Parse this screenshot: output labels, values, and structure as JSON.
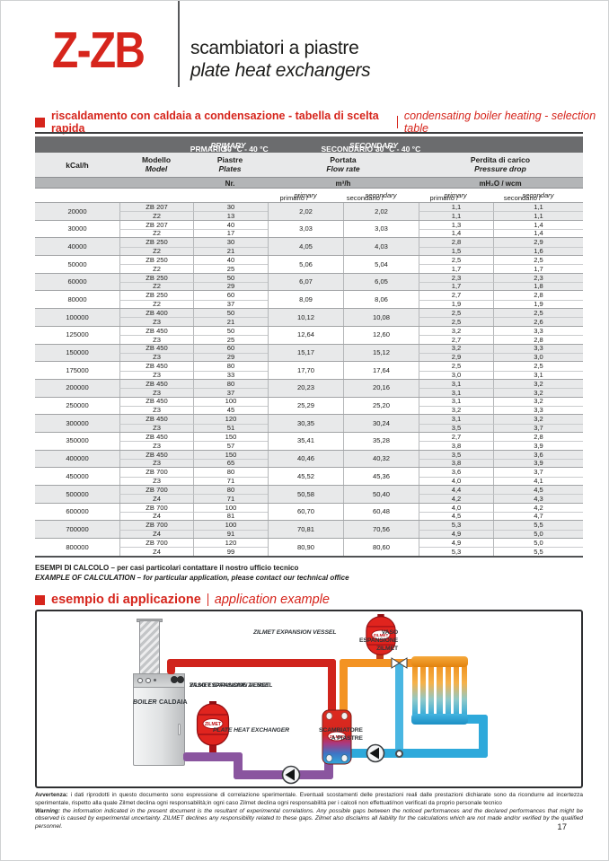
{
  "header": {
    "product_code": "Z-ZB",
    "title_it": "scambiatori a piastre",
    "title_en": "plate heat exchangers"
  },
  "section1": {
    "title_it": "riscaldamento con caldaia a condensazione - tabella di scelta rapida",
    "title_en": "condensating boiler heating - selection table"
  },
  "table": {
    "band_primary": {
      "a": "PRMARIO -",
      "b": "PRIMARY",
      "c": "50 °C - 40 °C"
    },
    "band_secondary": {
      "a": "SECONDARIO -",
      "b": "SECONDARY",
      "c": "30 °C - 40 °C"
    },
    "headers": {
      "kcal": "kCal/h",
      "model": {
        "it": "Modello",
        "en": "Model"
      },
      "plates": {
        "it": "Piastre",
        "en": "Plates"
      },
      "flow": {
        "it": "Portata",
        "en": "Flow rate"
      },
      "pressure": {
        "it": "Perdita di carico",
        "en": "Pressure drop"
      }
    },
    "units": {
      "plates": "Nr.",
      "flow": "m³/h",
      "pressure": "mH₂O /  wcm"
    },
    "sublabels": [
      {
        "it": "primario /",
        "en": "primary"
      },
      {
        "it": "secondario /",
        "en": "secondary"
      },
      {
        "it": "primario /",
        "en": "primary"
      },
      {
        "it": "secondario /",
        "en": "secondary"
      }
    ],
    "rows": [
      {
        "kcal": "20000",
        "model": "ZB 207",
        "variant": "Z2",
        "plates": [
          "30",
          "13"
        ],
        "flow": [
          "2,02",
          "2,02"
        ],
        "pd_primary": [
          "1,1",
          "1,1"
        ],
        "pd_secondary": [
          "1,1",
          "1,1"
        ]
      },
      {
        "kcal": "30000",
        "model": "ZB 207",
        "variant": "Z2",
        "plates": [
          "40",
          "17"
        ],
        "flow": [
          "3,03",
          "3,03"
        ],
        "pd_primary": [
          "1,3",
          "1,4"
        ],
        "pd_secondary": [
          "1,4",
          "1,4"
        ]
      },
      {
        "kcal": "40000",
        "model": "ZB 250",
        "variant": "Z2",
        "plates": [
          "30",
          "21"
        ],
        "flow": [
          "4,05",
          "4,03"
        ],
        "pd_primary": [
          "2,8",
          "1,5"
        ],
        "pd_secondary": [
          "2,9",
          "1,6"
        ]
      },
      {
        "kcal": "50000",
        "model": "ZB 250",
        "variant": "Z2",
        "plates": [
          "40",
          "25"
        ],
        "flow": [
          "5,06",
          "5,04"
        ],
        "pd_primary": [
          "2,5",
          "1,7"
        ],
        "pd_secondary": [
          "2,5",
          "1,7"
        ]
      },
      {
        "kcal": "60000",
        "model": "ZB 250",
        "variant": "Z2",
        "plates": [
          "50",
          "29"
        ],
        "flow": [
          "6,07",
          "6,05"
        ],
        "pd_primary": [
          "2,3",
          "1,7"
        ],
        "pd_secondary": [
          "2,3",
          "1,8"
        ]
      },
      {
        "kcal": "80000",
        "model": "ZB 250",
        "variant": "Z2",
        "plates": [
          "60",
          "37"
        ],
        "flow": [
          "8,09",
          "8,06"
        ],
        "pd_primary": [
          "2,7",
          "1,9"
        ],
        "pd_secondary": [
          "2,8",
          "1,9"
        ]
      },
      {
        "kcal": "100000",
        "model": "ZB 400",
        "variant": "Z3",
        "plates": [
          "50",
          "21"
        ],
        "flow": [
          "10,12",
          "10,08"
        ],
        "pd_primary": [
          "2,5",
          "2,5"
        ],
        "pd_secondary": [
          "2,5",
          "2,6"
        ]
      },
      {
        "kcal": "125000",
        "model": "ZB 450",
        "variant": "Z3",
        "plates": [
          "50",
          "25"
        ],
        "flow": [
          "12,64",
          "12,60"
        ],
        "pd_primary": [
          "3,2",
          "2,7"
        ],
        "pd_secondary": [
          "3,3",
          "2,8"
        ]
      },
      {
        "kcal": "150000",
        "model": "ZB 450",
        "variant": "Z3",
        "plates": [
          "60",
          "29"
        ],
        "flow": [
          "15,17",
          "15,12"
        ],
        "pd_primary": [
          "3,2",
          "2,9"
        ],
        "pd_secondary": [
          "3,3",
          "3,0"
        ]
      },
      {
        "kcal": "175000",
        "model": "ZB 450",
        "variant": "Z3",
        "plates": [
          "80",
          "33"
        ],
        "flow": [
          "17,70",
          "17,64"
        ],
        "pd_primary": [
          "2,5",
          "3,0"
        ],
        "pd_secondary": [
          "2,5",
          "3,1"
        ]
      },
      {
        "kcal": "200000",
        "model": "ZB 450",
        "variant": "Z3",
        "plates": [
          "80",
          "37"
        ],
        "flow": [
          "20,23",
          "20,16"
        ],
        "pd_primary": [
          "3,1",
          "3,1"
        ],
        "pd_secondary": [
          "3,2",
          "3,2"
        ]
      },
      {
        "kcal": "250000",
        "model": "ZB 450",
        "variant": "Z3",
        "plates": [
          "100",
          "45"
        ],
        "flow": [
          "25,29",
          "25,20"
        ],
        "pd_primary": [
          "3,1",
          "3,2"
        ],
        "pd_secondary": [
          "3,2",
          "3,3"
        ]
      },
      {
        "kcal": "300000",
        "model": "ZB 450",
        "variant": "Z3",
        "plates": [
          "120",
          "51"
        ],
        "flow": [
          "30,35",
          "30,24"
        ],
        "pd_primary": [
          "3,1",
          "3,5"
        ],
        "pd_secondary": [
          "3,2",
          "3,7"
        ]
      },
      {
        "kcal": "350000",
        "model": "ZB 450",
        "variant": "Z3",
        "plates": [
          "150",
          "57"
        ],
        "flow": [
          "35,41",
          "35,28"
        ],
        "pd_primary": [
          "2,7",
          "3,8"
        ],
        "pd_secondary": [
          "2,8",
          "3,9"
        ]
      },
      {
        "kcal": "400000",
        "model": "ZB 450",
        "variant": "Z3",
        "plates": [
          "150",
          "65"
        ],
        "flow": [
          "40,46",
          "40,32"
        ],
        "pd_primary": [
          "3,5",
          "3,8"
        ],
        "pd_secondary": [
          "3,6",
          "3,9"
        ]
      },
      {
        "kcal": "450000",
        "model": "ZB 700",
        "variant": "Z3",
        "plates": [
          "80",
          "71"
        ],
        "flow": [
          "45,52",
          "45,36"
        ],
        "pd_primary": [
          "3,6",
          "4,0"
        ],
        "pd_secondary": [
          "3,7",
          "4,1"
        ]
      },
      {
        "kcal": "500000",
        "model": "ZB 700",
        "variant": "Z4",
        "plates": [
          "80",
          "71"
        ],
        "flow": [
          "50,58",
          "50,40"
        ],
        "pd_primary": [
          "4,4",
          "4,2"
        ],
        "pd_secondary": [
          "4,5",
          "4,3"
        ]
      },
      {
        "kcal": "600000",
        "model": "ZB 700",
        "variant": "Z4",
        "plates": [
          "100",
          "81"
        ],
        "flow": [
          "60,70",
          "60,48"
        ],
        "pd_primary": [
          "4,0",
          "4,5"
        ],
        "pd_secondary": [
          "4,2",
          "4,7"
        ]
      },
      {
        "kcal": "700000",
        "model": "ZB 700",
        "variant": "Z4",
        "plates": [
          "100",
          "91"
        ],
        "flow": [
          "70,81",
          "70,56"
        ],
        "pd_primary": [
          "5,3",
          "4,9"
        ],
        "pd_secondary": [
          "5,5",
          "5,0"
        ]
      },
      {
        "kcal": "800000",
        "model": "ZB 700",
        "variant": "Z4",
        "plates": [
          "120",
          "99"
        ],
        "flow": [
          "80,90",
          "80,60"
        ],
        "pd_primary": [
          "4,9",
          "5,3"
        ],
        "pd_secondary": [
          "5,0",
          "5,5"
        ]
      }
    ]
  },
  "notes": {
    "it": "ESEMPI DI CALCOLO – per casi particolari contattare il nostro ufficio tecnico",
    "en": "EXAMPLE OF CALCULATION – for particular application, please contact our technical office"
  },
  "section2": {
    "title_it": "esempio di applicazione",
    "title_en": "application example"
  },
  "diagram": {
    "vessel_top_label": {
      "line1": "VASO ESPANSIONE ZILMET",
      "line2": "ZILMET EXPANSION VESSEL"
    },
    "vessel_left_label": {
      "line1": "VASO ESPANSIONE ZILMET",
      "line2": "ZILMET EXPANSION VESSEL"
    },
    "boiler_label": {
      "line1": "CALDAIA",
      "line2": "BOILER"
    },
    "hx_label": {
      "line1": "SCAMBIATORE A PIASTRE",
      "line2": "PLATE HEAT EXCHANGER"
    },
    "brand": "ZILMET"
  },
  "footer": {
    "it_label": "Avvertenza:",
    "it_text": " i dati riprodotti in questo documento sono espressione di correlazione sperimentale. Eventuali scostamenti delle prestazioni reali dalle prestazioni dichiarate sono da ricondurre ad incertezza sperimentale, rispetto alla quale Zilmet declina ogni responsabilità;in ogni caso Zilmet declina ogni responsabilità per i calcoli non effettuati/non verificati da proprio personale tecnico",
    "en_label": "Warning:",
    "en_text": " the information indicated in the present document is the resultant of experimental correlations. Any possible gaps between the noticed performances and the declared performances that might be observed is caused by experimental uncertainty. ZILMET declines any responsibility related to these gaps. Zilmet also disclaims all liability for the calculations which are not made and/or verified by the qualified personnel."
  },
  "page_number": "17",
  "colors": {
    "accent_red": "#d6251c",
    "table_bar_gray": "#6b6c6e",
    "pipe_red": "#d0241c",
    "pipe_orange": "#f39323",
    "pipe_blue": "#2ea9db",
    "pipe_purple": "#8a559f"
  }
}
